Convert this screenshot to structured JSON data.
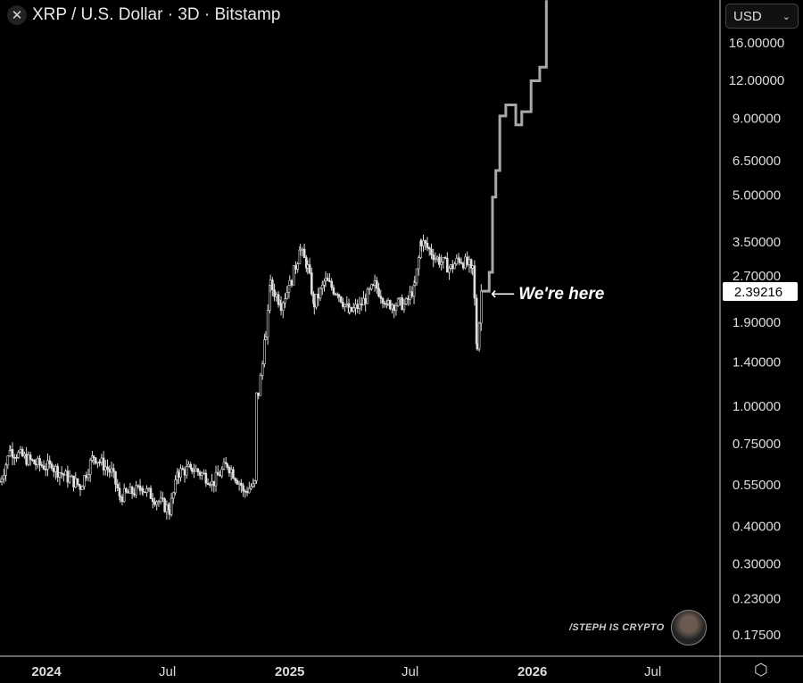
{
  "header": {
    "title": "XRP / U.S. Dollar · 3D · Bitstamp",
    "close_icon": "close-icon"
  },
  "currency_select": {
    "value": "USD"
  },
  "annotation": {
    "text": "We're here",
    "icon": "arrow-left-icon"
  },
  "watermark": {
    "text": "/STEPH IS CRYPTO"
  },
  "settings_icon": "settings-hexagon-icon",
  "colors": {
    "background": "#000000",
    "candle": "#e0e0e0",
    "projection": "#a8a8a8",
    "axis": "#cccccc"
  },
  "chart_data": {
    "type": "candlestick",
    "title": "XRP / U.S. Dollar · 3D · Bitstamp",
    "y_scale": "log",
    "ylim": [
      0.15,
      22
    ],
    "xlim": [
      "2023-10-23",
      "2026-10-15"
    ],
    "grid": false,
    "y_ticks": [
      "16.00000",
      "12.00000",
      "9.00000",
      "6.50000",
      "5.00000",
      "3.50000",
      "2.70000",
      "1.90000",
      "1.40000",
      "1.00000",
      "0.75000",
      "0.55000",
      "0.40000",
      "0.30000",
      "0.23000",
      "0.17500"
    ],
    "x_ticks": [
      {
        "label": "2024",
        "date": "2024-01-01",
        "bold": true
      },
      {
        "label": "Jul",
        "date": "2024-07-01"
      },
      {
        "label": "2025",
        "date": "2025-01-01",
        "bold": true
      },
      {
        "label": "Jul",
        "date": "2025-07-01"
      },
      {
        "label": "2026",
        "date": "2026-01-01",
        "bold": true
      },
      {
        "label": "Jul",
        "date": "2026-07-01"
      }
    ],
    "last_price": "2.39216",
    "history": [
      [
        "2023-10-23",
        0.56
      ],
      [
        "2023-11-08",
        0.71
      ],
      [
        "2023-12-16",
        0.64
      ],
      [
        "2024-01-12",
        0.62
      ],
      [
        "2024-02-21",
        0.54
      ],
      [
        "2024-03-12",
        0.68
      ],
      [
        "2024-04-08",
        0.6
      ],
      [
        "2024-04-21",
        0.5
      ],
      [
        "2024-05-25",
        0.53
      ],
      [
        "2024-07-04",
        0.45
      ],
      [
        "2024-07-18",
        0.6
      ],
      [
        "2024-08-07",
        0.62
      ],
      [
        "2024-09-09",
        0.56
      ],
      [
        "2024-09-29",
        0.64
      ],
      [
        "2024-10-26",
        0.52
      ],
      [
        "2024-11-09",
        0.55
      ],
      [
        "2024-11-15",
        1.1
      ],
      [
        "2024-11-26",
        1.65
      ],
      [
        "2024-12-03",
        2.5
      ],
      [
        "2024-12-19",
        2.17
      ],
      [
        "2025-01-01",
        2.5
      ],
      [
        "2025-01-17",
        3.27
      ],
      [
        "2025-01-28",
        2.85
      ],
      [
        "2025-02-07",
        2.17
      ],
      [
        "2025-02-24",
        2.58
      ],
      [
        "2025-03-16",
        2.33
      ],
      [
        "2025-04-01",
        2.03
      ],
      [
        "2025-04-19",
        2.17
      ],
      [
        "2025-05-09",
        2.5
      ],
      [
        "2025-05-29",
        2.17
      ],
      [
        "2025-06-25",
        2.17
      ],
      [
        "2025-07-08",
        2.5
      ],
      [
        "2025-07-18",
        3.5
      ],
      [
        "2025-08-11",
        3.06
      ],
      [
        "2025-08-31",
        2.85
      ],
      [
        "2025-09-13",
        3.06
      ],
      [
        "2025-10-03",
        2.85
      ],
      [
        "2025-10-10",
        1.6
      ],
      [
        "2025-10-17",
        2.39
      ]
    ],
    "projection": [
      [
        "2025-10-17",
        2.39
      ],
      [
        "2025-10-28",
        2.76
      ],
      [
        "2025-11-02",
        4.9
      ],
      [
        "2025-11-07",
        6.0
      ],
      [
        "2025-11-13",
        9.1
      ],
      [
        "2025-11-22",
        9.9
      ],
      [
        "2025-12-07",
        8.5
      ],
      [
        "2025-12-16",
        9.4
      ],
      [
        "2025-12-30",
        11.9
      ],
      [
        "2026-01-12",
        13.2
      ],
      [
        "2026-01-22",
        22
      ]
    ]
  }
}
